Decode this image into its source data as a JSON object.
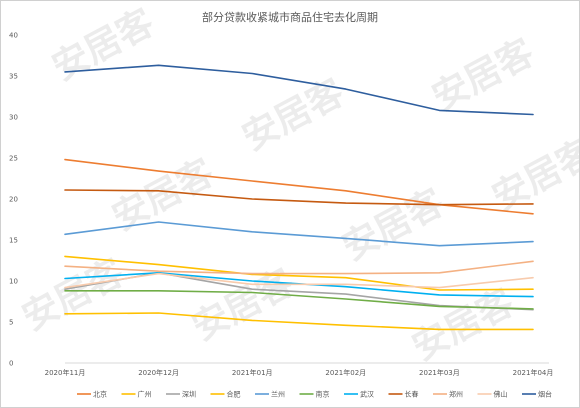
{
  "chart_data": {
    "type": "line",
    "title": "部分贷款收紧城市商品住宅去化周期",
    "watermark": "安居客",
    "categories": [
      "2020年11月",
      "2020年12月",
      "2021年01月",
      "2021年02月",
      "2021年03月",
      "2021年04月"
    ],
    "ylim": [
      0,
      40
    ],
    "yticks": [
      "0",
      "5",
      "10",
      "15",
      "20",
      "25",
      "30",
      "35",
      "40"
    ],
    "grid": false,
    "legend_position": "bottom",
    "series": [
      {
        "name": "北京",
        "color": "#ED7D31",
        "values": [
          24.8,
          23.4,
          22.2,
          21.0,
          19.3,
          18.2
        ]
      },
      {
        "name": "广州",
        "color": "#FFC000",
        "values": [
          13.0,
          12.0,
          10.8,
          10.4,
          8.9,
          9.0
        ]
      },
      {
        "name": "深圳",
        "color": "#A5A5A5",
        "values": [
          9.0,
          11.0,
          9.0,
          8.4,
          7.0,
          6.5
        ]
      },
      {
        "name": "合肥",
        "color": "#FFC000",
        "values": [
          6.0,
          6.1,
          5.2,
          4.6,
          4.1,
          4.1
        ]
      },
      {
        "name": "兰州",
        "color": "#5B9BD5",
        "values": [
          15.7,
          17.2,
          16.0,
          15.2,
          14.3,
          14.8
        ]
      },
      {
        "name": "南京",
        "color": "#70AD47",
        "values": [
          8.8,
          8.8,
          8.6,
          7.8,
          6.9,
          6.6
        ]
      },
      {
        "name": "武汉",
        "color": "#00B0F0",
        "values": [
          10.3,
          11.0,
          10.0,
          9.3,
          8.3,
          8.1
        ]
      },
      {
        "name": "长春",
        "color": "#C55A11",
        "values": [
          21.1,
          21.0,
          20.0,
          19.5,
          19.3,
          19.4
        ]
      },
      {
        "name": "郑州",
        "color": "#F4B183",
        "values": [
          11.8,
          11.2,
          10.9,
          10.9,
          11.0,
          12.4
        ]
      },
      {
        "name": "佛山",
        "color": "#F8CBAD",
        "values": [
          9.2,
          10.9,
          9.6,
          9.6,
          9.2,
          10.4
        ]
      },
      {
        "name": "烟台",
        "color": "#2E5E9E",
        "values": [
          35.5,
          36.3,
          35.3,
          33.4,
          30.8,
          30.3
        ]
      }
    ]
  }
}
